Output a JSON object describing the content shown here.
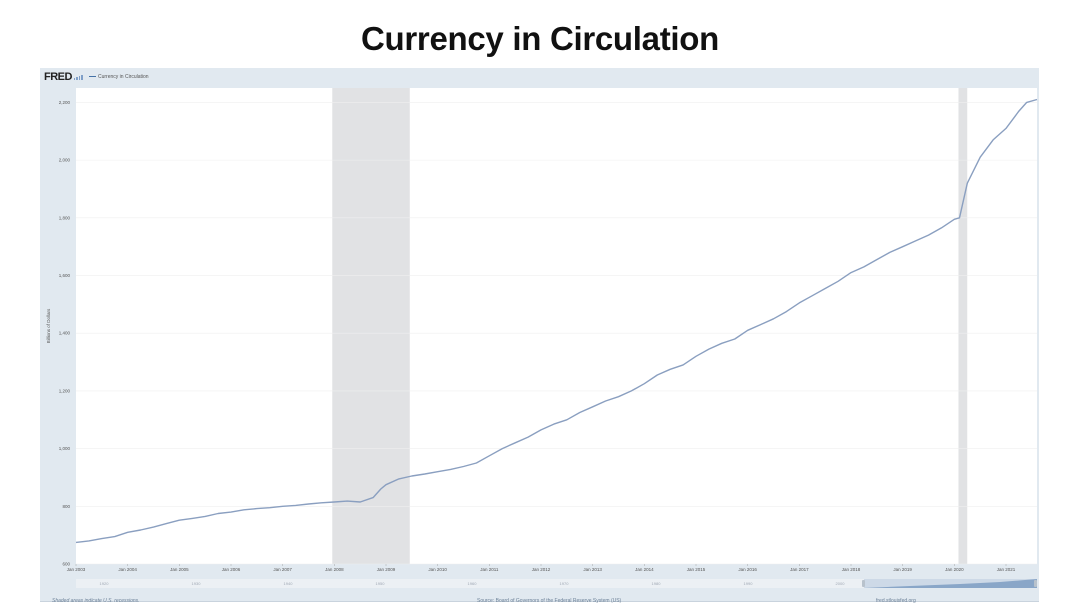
{
  "slide_title": "Currency in Circulation",
  "fred": {
    "logo": "FRED",
    "legend_label": "Currency in Circulation",
    "footer_left": "Shaded areas indicate U.S. recessions.",
    "footer_center": "Source: Board of Governors of the Federal Reserve System (US)",
    "footer_right": "fred.stlouisfed.org",
    "line_color": "#4572a7",
    "recession_color": "#e1e2e4",
    "frame_color": "#e1e9f0"
  },
  "navigator": {
    "labels": [
      "1920",
      "1930",
      "1940",
      "1950",
      "1960",
      "1970",
      "1980",
      "1990",
      "2000"
    ]
  },
  "chart_data": {
    "type": "line",
    "title": "",
    "xlabel": "",
    "ylabel": "Billions of Dollars",
    "xlim": [
      2003.0,
      2021.6
    ],
    "ylim": [
      600,
      2250
    ],
    "yticks": [
      600,
      800,
      1000,
      1200,
      1400,
      1600,
      1800,
      2000,
      2200
    ],
    "ytick_labels": [
      "600",
      "800",
      "1,000",
      "1,200",
      "1,400",
      "1,600",
      "1,800",
      "2,000",
      "2,200"
    ],
    "xticks": [
      2003,
      2004,
      2005,
      2006,
      2007,
      2008,
      2009,
      2010,
      2011,
      2012,
      2013,
      2014,
      2015,
      2016,
      2017,
      2018,
      2019,
      2020,
      2021
    ],
    "xtick_labels": [
      "Jan 2003",
      "Jan 2004",
      "Jan 2005",
      "Jan 2006",
      "Jan 2007",
      "Jan 2008",
      "Jan 2009",
      "Jan 2010",
      "Jan 2011",
      "Jan 2012",
      "Jan 2013",
      "Jan 2014",
      "Jan 2015",
      "Jan 2016",
      "Jan 2017",
      "Jan 2018",
      "Jan 2019",
      "Jan 2020",
      "Jan 2021"
    ],
    "grid": true,
    "recessions": [
      [
        2007.96,
        2009.46
      ],
      [
        2020.08,
        2020.25
      ]
    ],
    "series": [
      {
        "name": "Currency in Circulation",
        "x": [
          2003.0,
          2003.25,
          2003.5,
          2003.75,
          2004.0,
          2004.25,
          2004.5,
          2004.75,
          2005.0,
          2005.25,
          2005.5,
          2005.75,
          2006.0,
          2006.25,
          2006.5,
          2006.75,
          2007.0,
          2007.25,
          2007.5,
          2007.75,
          2008.0,
          2008.25,
          2008.5,
          2008.75,
          2008.9,
          2009.0,
          2009.25,
          2009.5,
          2009.75,
          2010.0,
          2010.25,
          2010.5,
          2010.75,
          2011.0,
          2011.25,
          2011.5,
          2011.75,
          2012.0,
          2012.25,
          2012.5,
          2012.75,
          2013.0,
          2013.25,
          2013.5,
          2013.75,
          2014.0,
          2014.25,
          2014.5,
          2014.75,
          2015.0,
          2015.25,
          2015.5,
          2015.75,
          2016.0,
          2016.25,
          2016.5,
          2016.75,
          2017.0,
          2017.25,
          2017.5,
          2017.75,
          2018.0,
          2018.25,
          2018.5,
          2018.75,
          2019.0,
          2019.25,
          2019.5,
          2019.75,
          2020.0,
          2020.1,
          2020.25,
          2020.5,
          2020.75,
          2021.0,
          2021.25,
          2021.4,
          2021.6
        ],
        "y": [
          675,
          680,
          688,
          695,
          710,
          718,
          728,
          740,
          752,
          758,
          765,
          775,
          780,
          788,
          792,
          795,
          800,
          803,
          808,
          812,
          815,
          818,
          815,
          830,
          860,
          875,
          895,
          905,
          912,
          920,
          928,
          938,
          950,
          975,
          1000,
          1020,
          1040,
          1065,
          1085,
          1100,
          1125,
          1145,
          1165,
          1180,
          1200,
          1225,
          1255,
          1275,
          1290,
          1320,
          1345,
          1365,
          1380,
          1410,
          1430,
          1450,
          1475,
          1505,
          1530,
          1555,
          1580,
          1610,
          1630,
          1655,
          1680,
          1700,
          1720,
          1740,
          1765,
          1795,
          1800,
          1920,
          2010,
          2070,
          2110,
          2170,
          2200,
          2210
        ]
      }
    ]
  }
}
